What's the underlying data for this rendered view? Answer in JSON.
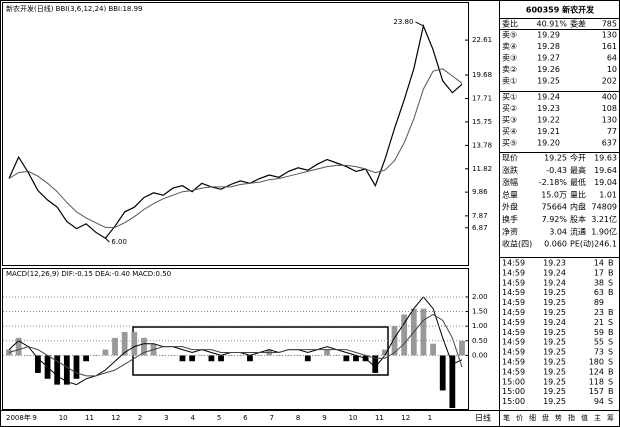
{
  "chart_data": [
    {
      "type": "line",
      "title": "新农开发(日线)  BBI(3,6,12,24)  BBI:18.99",
      "series": [
        {
          "color": "#000000",
          "values": [
            11.0,
            12.8,
            11.5,
            10.0,
            9.2,
            8.6,
            7.4,
            6.8,
            7.2,
            6.5,
            6.0,
            7.0,
            8.2,
            8.6,
            9.4,
            9.8,
            9.6,
            10.2,
            10.4,
            9.9,
            10.6,
            10.3,
            10.1,
            10.5,
            10.8,
            10.6,
            11.0,
            11.3,
            11.1,
            11.6,
            11.9,
            11.7,
            12.2,
            12.6,
            12.3,
            12.0,
            11.6,
            11.8,
            10.4,
            12.6,
            15.2,
            17.6,
            20.2,
            23.8,
            21.8,
            19.2,
            18.2,
            18.9
          ]
        },
        {
          "color": "#555555",
          "values": [
            11.0,
            11.5,
            11.6,
            11.2,
            10.6,
            9.9,
            9.0,
            8.2,
            7.7,
            7.3,
            6.9,
            6.9,
            7.3,
            7.8,
            8.4,
            8.9,
            9.3,
            9.6,
            9.9,
            10.0,
            10.2,
            10.3,
            10.3,
            10.3,
            10.5,
            10.6,
            10.7,
            10.9,
            11.0,
            11.2,
            11.4,
            11.6,
            11.8,
            12.0,
            12.1,
            12.1,
            12.0,
            11.8,
            11.5,
            11.7,
            12.5,
            14.0,
            16.0,
            18.5,
            20.0,
            20.2,
            19.6,
            18.99
          ]
        }
      ],
      "ylim": [
        4,
        24.8
      ],
      "yticks": [
        22.61,
        19.68,
        17.71,
        15.75,
        13.78,
        11.82,
        9.86,
        7.87,
        6.87
      ],
      "annotations": [
        {
          "value": 23.8,
          "label": "23.80"
        },
        {
          "value": 6,
          "label": "6.00"
        }
      ],
      "grid": false,
      "x_axis_labels": [
        "2008年",
        "9",
        "10",
        "11",
        "12",
        "2",
        "3",
        "4",
        "5",
        "6",
        "7",
        "8",
        "9",
        "10",
        "11",
        "12",
        "1"
      ]
    },
    {
      "type": "macd",
      "title": "MACD(12,26,9)  DIF:-0.15  DEA:-0.40  MACD:0.50",
      "series": [
        {
          "color": "#000000",
          "values": [
            0.2,
            0.5,
            0.3,
            -0.1,
            -0.4,
            -0.7,
            -0.9,
            -1.0,
            -0.8,
            -0.7,
            -0.5,
            -0.2,
            0.1,
            0.3,
            0.4,
            0.4,
            0.3,
            0.3,
            0.2,
            0.1,
            0.2,
            0.1,
            0.0,
            0.1,
            0.1,
            0.0,
            0.1,
            0.2,
            0.1,
            0.2,
            0.2,
            0.1,
            0.2,
            0.3,
            0.2,
            0.1,
            0.0,
            -0.1,
            -0.4,
            0.0,
            0.6,
            1.1,
            1.6,
            2.0,
            1.6,
            0.6,
            -0.3,
            -0.15
          ]
        },
        {
          "color": "#444444",
          "values": [
            0.1,
            0.2,
            0.3,
            0.2,
            0.0,
            -0.2,
            -0.4,
            -0.6,
            -0.7,
            -0.7,
            -0.6,
            -0.5,
            -0.3,
            -0.1,
            0.1,
            0.2,
            0.3,
            0.3,
            0.3,
            0.2,
            0.2,
            0.2,
            0.1,
            0.1,
            0.1,
            0.1,
            0.1,
            0.1,
            0.1,
            0.2,
            0.2,
            0.2,
            0.2,
            0.2,
            0.2,
            0.2,
            0.1,
            0.0,
            -0.1,
            -0.1,
            0.1,
            0.4,
            0.8,
            1.2,
            1.4,
            1.2,
            0.6,
            -0.4
          ]
        }
      ],
      "bars": {
        "color_up": "#999999",
        "color_down": "#000000",
        "values": [
          0.2,
          0.6,
          0,
          -0.6,
          -0.8,
          -1.0,
          -1.0,
          -0.8,
          -0.2,
          0,
          0.2,
          0.6,
          0.8,
          0.8,
          0.6,
          0.4,
          0,
          0,
          -0.2,
          -0.2,
          0,
          -0.2,
          -0.2,
          0,
          0,
          -0.2,
          0,
          0.2,
          0,
          0,
          0,
          -0.2,
          0,
          0.2,
          0,
          -0.2,
          -0.2,
          -0.2,
          -0.6,
          0.2,
          1.0,
          1.4,
          1.6,
          1.6,
          0.4,
          -1.2,
          -1.8,
          0.5
        ]
      },
      "ylim": [
        -1.8,
        2.58
      ],
      "yticks": [
        {
          "value": 0,
          "label": "0.00"
        },
        {
          "value": 0.5,
          "label": "0.50"
        },
        {
          "value": 1,
          "label": "1.00"
        },
        {
          "value": 1.5,
          "label": "1.50"
        },
        {
          "value": 2,
          "label": "2.00"
        }
      ],
      "grid": true
    }
  ],
  "panel": {
    "title": "600359 新农开发",
    "summary": [
      "委比",
      "40.91%",
      "委差",
      "785"
    ],
    "asks": [
      [
        "卖⑤",
        "19.29",
        "130"
      ],
      [
        "卖④",
        "19.28",
        "161"
      ],
      [
        "卖③",
        "19.27",
        "64"
      ],
      [
        "卖②",
        "19.26",
        "10"
      ],
      [
        "卖①",
        "19.25",
        "202"
      ]
    ],
    "bids": [
      [
        "买①",
        "19.24",
        "400"
      ],
      [
        "买②",
        "19.23",
        "108"
      ],
      [
        "买③",
        "19.22",
        "130"
      ],
      [
        "买④",
        "19.21",
        "77"
      ],
      [
        "买⑤",
        "19.20",
        "637"
      ]
    ],
    "quote": [
      [
        "现价",
        "19.25",
        "今开",
        "19.63"
      ],
      [
        "涨跌",
        "-0.43",
        "最高",
        "19.64"
      ],
      [
        "涨幅",
        "-2.18%",
        "最低",
        "19.04"
      ],
      [
        "总量",
        "15.0万",
        "量比",
        "1.01"
      ],
      [
        "外盘",
        "75664",
        "内盘",
        "74809"
      ],
      [
        "换手",
        "7.92%",
        "股本",
        "3.21亿"
      ],
      [
        "净资",
        "3.04",
        "流通",
        "1.90亿"
      ],
      [
        "收益(四)",
        "0.060",
        "PE(动)",
        "246.1"
      ]
    ],
    "trades": [
      [
        "14:59",
        "19.23",
        "14",
        "B"
      ],
      [
        "14:59",
        "19.24",
        "17",
        "B"
      ],
      [
        "14:59",
        "19.24",
        "38",
        "S"
      ],
      [
        "14:59",
        "19.25",
        "63",
        "B"
      ],
      [
        "14:59",
        "19.25",
        "89"
      ],
      [
        "14:59",
        "19.25",
        "23",
        "B"
      ],
      [
        "14:59",
        "19.24",
        "21",
        "S"
      ],
      [
        "14:59",
        "19.25",
        "59",
        "B"
      ],
      [
        "14:59",
        "19.25",
        "55",
        "S"
      ],
      [
        "14:59",
        "19.25",
        "73",
        "S"
      ],
      [
        "14:59",
        "19.25",
        "180",
        "S"
      ],
      [
        "14:59",
        "19.25",
        "124",
        "B"
      ],
      [
        "15:00",
        "19.25",
        "118",
        "S"
      ],
      [
        "15:00",
        "19.25",
        "157",
        "B"
      ],
      [
        "15:00",
        "19.25",
        "94",
        "S"
      ]
    ],
    "period_tab": "日线",
    "tabs": [
      "笔",
      "价",
      "细",
      "盘",
      "势",
      "指",
      "值",
      "主",
      "筹"
    ]
  }
}
